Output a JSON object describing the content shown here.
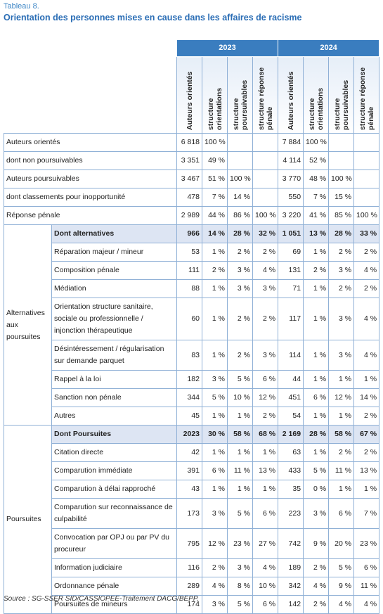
{
  "header": {
    "kicker": "Tableau 8.",
    "title": "Orientation des personnes mises en cause dans les affaires de racisme"
  },
  "table": {
    "years": [
      "2023",
      "2024"
    ],
    "columns": [
      "Auteurs orientés",
      "structure orientations",
      "structure poursuivables",
      "structure réponse pénale"
    ],
    "rows": [
      {
        "label": "Auteurs orientés",
        "cells": [
          "6 818",
          "100 %",
          null,
          null,
          "7 884",
          "100 %",
          null,
          null
        ]
      },
      {
        "label": "dont non poursuivables",
        "cells": [
          "3 351",
          "49 %",
          null,
          null,
          "4 114",
          "52 %",
          null,
          null
        ]
      },
      {
        "label": "Auteurs poursuivables",
        "cells": [
          "3 467",
          "51 %",
          "100 %",
          null,
          "3 770",
          "48 %",
          "100 %",
          null
        ]
      },
      {
        "label": "dont classements pour inopportunité",
        "cells": [
          "478",
          "7 %",
          "14 %",
          null,
          "550",
          "7 %",
          "15 %",
          null
        ]
      },
      {
        "label": "Réponse pénale",
        "cells": [
          "2 989",
          "44 %",
          "86 %",
          "100 %",
          "3 220",
          "41 %",
          "85 %",
          "100 %"
        ]
      }
    ],
    "groups": [
      {
        "label": "Alternatives aux poursuites",
        "rows": [
          {
            "label": "Dont alternatives",
            "cells": [
              "966",
              "14 %",
              "28 %",
              "32 %",
              "1 051",
              "13 %",
              "28 %",
              "33 %"
            ]
          },
          {
            "label": "Réparation majeur / mineur",
            "cells": [
              "53",
              "1 %",
              "2 %",
              "2 %",
              "69",
              "1 %",
              "2 %",
              "2 %"
            ]
          },
          {
            "label": "Composition pénale",
            "cells": [
              "111",
              "2 %",
              "3 %",
              "4 %",
              "131",
              "2 %",
              "3 %",
              "4 %"
            ]
          },
          {
            "label": "Médiation",
            "cells": [
              "88",
              "1 %",
              "3 %",
              "3 %",
              "71",
              "1 %",
              "2 %",
              "2 %"
            ]
          },
          {
            "label": "Orientation structure sanitaire, sociale ou professionnelle / injonction thérapeutique",
            "cells": [
              "60",
              "1 %",
              "2 %",
              "2 %",
              "117",
              "1 %",
              "3 %",
              "4 %"
            ]
          },
          {
            "label": "Désintéressement / régularisation sur demande parquet",
            "cells": [
              "83",
              "1 %",
              "2 %",
              "3 %",
              "114",
              "1 %",
              "3 %",
              "4 %"
            ]
          },
          {
            "label": "Rappel à la loi",
            "cells": [
              "182",
              "3 %",
              "5 %",
              "6 %",
              "44",
              "1 %",
              "1 %",
              "1 %"
            ]
          },
          {
            "label": "Sanction non pénale",
            "cells": [
              "344",
              "5 %",
              "10 %",
              "12 %",
              "451",
              "6 %",
              "12 %",
              "14 %"
            ]
          },
          {
            "label": "Autres",
            "cells": [
              "45",
              "1 %",
              "1 %",
              "2 %",
              "54",
              "1 %",
              "1 %",
              "2 %"
            ]
          }
        ]
      },
      {
        "label": "Poursuites",
        "rows": [
          {
            "label": "Dont Poursuites",
            "cells": [
              "2023",
              "30 %",
              "58 %",
              "68 %",
              "2 169",
              "28 %",
              "58 %",
              "67 %"
            ]
          },
          {
            "label": "Citation directe",
            "cells": [
              "42",
              "1 %",
              "1 %",
              "1 %",
              "63",
              "1 %",
              "2 %",
              "2 %"
            ]
          },
          {
            "label": "Comparution immédiate",
            "cells": [
              "391",
              "6 %",
              "11 %",
              "13 %",
              "433",
              "5 %",
              "11 %",
              "13 %"
            ]
          },
          {
            "label": "Comparution à délai rapproché",
            "cells": [
              "43",
              "1 %",
              "1 %",
              "1 %",
              "35",
              "0 %",
              "1 %",
              "1 %"
            ]
          },
          {
            "label": "Comparution sur reconnaissance de culpabilité",
            "cells": [
              "173",
              "3 %",
              "5 %",
              "6 %",
              "223",
              "3 %",
              "6 %",
              "7 %"
            ]
          },
          {
            "label": "Convocation par OPJ ou par PV du procureur",
            "cells": [
              "795",
              "12 %",
              "23 %",
              "27 %",
              "742",
              "9 %",
              "20 %",
              "23 %"
            ]
          },
          {
            "label": "Information judiciaire",
            "cells": [
              "116",
              "2 %",
              "3 %",
              "4 %",
              "189",
              "2 %",
              "5 %",
              "6 %"
            ]
          },
          {
            "label": "Ordonnance pénale",
            "cells": [
              "289",
              "4 %",
              "8 %",
              "10 %",
              "342",
              "4 %",
              "9 %",
              "11 %"
            ]
          },
          {
            "label": "Poursuites de mineurs",
            "cells": [
              "174",
              "3 %",
              "5 %",
              "6 %",
              "142",
              "2 %",
              "4 %",
              "4 %"
            ]
          }
        ]
      }
    ]
  },
  "source": "Source : SG-SSER SID/CASSIOPEE-Traitement DACG/BEPP."
}
